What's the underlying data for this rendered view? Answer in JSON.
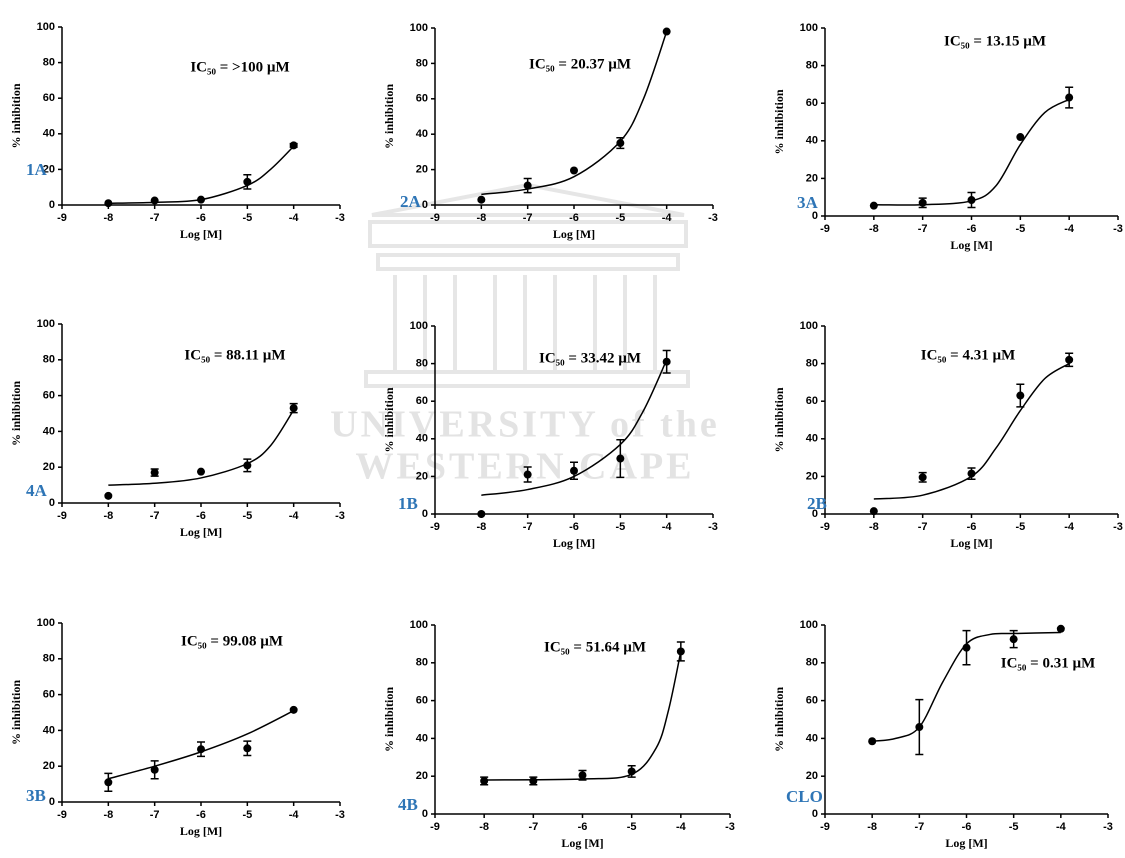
{
  "watermark": [
    "UNIVERSITY of the",
    "WESTERN CAPE"
  ],
  "chart_data": [
    {
      "type": "scatter",
      "panel_label": "1A",
      "annotation": "IC₅₀ = >100 µM",
      "xlabel": "Log [M]",
      "ylabel": "% inhibition",
      "xlim": [
        -9,
        -3
      ],
      "xticks": [
        -9,
        -8,
        -7,
        -6,
        -5,
        -4,
        -3
      ],
      "ylim": [
        0,
        100
      ],
      "yticks": [
        0,
        20,
        40,
        60,
        80,
        100
      ],
      "x": [
        -8,
        -7,
        -6,
        -5,
        -4
      ],
      "values": [
        1,
        2.5,
        3,
        13,
        33.5
      ],
      "errors": [
        null,
        null,
        null,
        4,
        1
      ],
      "curve": {
        "x": [
          -8,
          -7,
          -6,
          -5,
          -4.5,
          -4
        ],
        "values": [
          1,
          1.5,
          3,
          11,
          20,
          33
        ]
      }
    },
    {
      "type": "scatter",
      "panel_label": "2A",
      "annotation": "IC₅₀ = 20.37 µM",
      "xlabel": "Log [M]",
      "ylabel": "% inhibition",
      "xlim": [
        -9,
        -3
      ],
      "xticks": [
        -9,
        -8,
        -7,
        -6,
        -5,
        -4,
        -3
      ],
      "ylim": [
        0,
        100
      ],
      "yticks": [
        0,
        20,
        40,
        60,
        80,
        100
      ],
      "x": [
        -8,
        -7,
        -6,
        -5,
        -4
      ],
      "values": [
        3,
        11,
        19.5,
        35,
        98
      ],
      "errors": [
        null,
        4,
        null,
        3,
        null
      ],
      "curve": {
        "x": [
          -8,
          -7,
          -6,
          -5,
          -4.5,
          -4
        ],
        "values": [
          6,
          9,
          16,
          36,
          60,
          98
        ]
      }
    },
    {
      "type": "scatter",
      "panel_label": "3A",
      "annotation": "IC₅₀ = 13.15 µM",
      "xlabel": "Log [M]",
      "ylabel": "% inhibition",
      "xlim": [
        -9,
        -3
      ],
      "xticks": [
        -9,
        -8,
        -7,
        -6,
        -5,
        -4,
        -3
      ],
      "ylim": [
        0,
        100
      ],
      "yticks": [
        0,
        20,
        40,
        60,
        80,
        100
      ],
      "x": [
        -8,
        -7,
        -6,
        -5,
        -4
      ],
      "values": [
        5.5,
        7,
        8.5,
        42,
        63
      ],
      "errors": [
        null,
        2.5,
        4,
        null,
        5.5
      ],
      "curve": {
        "x": [
          -8,
          -7,
          -6,
          -5.5,
          -5,
          -4.5,
          -4
        ],
        "values": [
          6,
          6,
          8,
          16,
          38,
          55,
          62
        ]
      }
    },
    {
      "type": "scatter",
      "panel_label": "4A",
      "annotation": "IC₅₀ = 88.11 µM",
      "xlabel": "Log [M]",
      "ylabel": "% inhibition",
      "xlim": [
        -9,
        -3
      ],
      "xticks": [
        -9,
        -8,
        -7,
        -6,
        -5,
        -4,
        -3
      ],
      "ylim": [
        0,
        100
      ],
      "yticks": [
        0,
        20,
        40,
        60,
        80,
        100
      ],
      "x": [
        -8,
        -7,
        -6,
        -5,
        -4
      ],
      "values": [
        4,
        17,
        17.5,
        21,
        53
      ],
      "errors": [
        null,
        2,
        null,
        3.5,
        2.5
      ],
      "curve": {
        "x": [
          -8,
          -7,
          -6,
          -5,
          -4.5,
          -4
        ],
        "values": [
          10,
          11,
          14,
          22,
          32,
          52
        ]
      }
    },
    {
      "type": "scatter",
      "panel_label": "1B",
      "annotation": "IC₅₀ = 33.42 µM",
      "xlabel": "Log [M]",
      "ylabel": "% inhibition",
      "xlim": [
        -9,
        -3
      ],
      "xticks": [
        -9,
        -8,
        -7,
        -6,
        -5,
        -4,
        -3
      ],
      "ylim": [
        0,
        100
      ],
      "yticks": [
        0,
        20,
        40,
        60,
        80,
        100
      ],
      "x": [
        -8,
        -7,
        -6,
        -5,
        -4
      ],
      "values": [
        0,
        21,
        23,
        29.5,
        81
      ],
      "errors": [
        null,
        4,
        4.5,
        10,
        6
      ],
      "curve": {
        "x": [
          -8,
          -7,
          -6,
          -5,
          -4.5,
          -4
        ],
        "values": [
          10,
          13,
          20,
          37,
          55,
          82
        ]
      }
    },
    {
      "type": "scatter",
      "panel_label": "2B",
      "annotation": "IC₅₀ = 4.31 µM",
      "xlabel": "Log [M]",
      "ylabel": "% inhibition",
      "xlim": [
        -9,
        -3
      ],
      "xticks": [
        -9,
        -8,
        -7,
        -6,
        -5,
        -4,
        -3
      ],
      "ylim": [
        0,
        100
      ],
      "yticks": [
        0,
        20,
        40,
        60,
        80,
        100
      ],
      "x": [
        -8,
        -7,
        -6,
        -5,
        -4
      ],
      "values": [
        1.5,
        19.5,
        21.5,
        63,
        82
      ],
      "errors": [
        null,
        2.5,
        3,
        6,
        3.5
      ],
      "curve": {
        "x": [
          -8,
          -7,
          -6,
          -5.5,
          -5,
          -4.5,
          -4
        ],
        "values": [
          8,
          10,
          20,
          35,
          55,
          72,
          80
        ]
      }
    },
    {
      "type": "scatter",
      "panel_label": "3B",
      "annotation": "IC₅₀ = 99.08 µM",
      "xlabel": "Log [M]",
      "ylabel": "% inhibition",
      "xlim": [
        -9,
        -3
      ],
      "xticks": [
        -9,
        -8,
        -7,
        -6,
        -5,
        -4,
        -3
      ],
      "ylim": [
        0,
        100
      ],
      "yticks": [
        0,
        20,
        40,
        60,
        80,
        100
      ],
      "x": [
        -8,
        -7,
        -6,
        -5,
        -4
      ],
      "values": [
        11,
        18,
        29.5,
        30,
        51.5
      ],
      "errors": [
        5,
        5,
        4,
        4,
        null
      ],
      "curve": {
        "x": [
          -8,
          -7,
          -6,
          -5,
          -4
        ],
        "values": [
          13,
          20,
          28,
          38,
          51
        ]
      }
    },
    {
      "type": "scatter",
      "panel_label": "4B",
      "annotation": "IC₅₀ = 51.64 µM",
      "xlabel": "Log [M]",
      "ylabel": "% inhibition",
      "xlim": [
        -9,
        -3
      ],
      "xticks": [
        -9,
        -8,
        -7,
        -6,
        -5,
        -4,
        -3
      ],
      "ylim": [
        0,
        100
      ],
      "yticks": [
        0,
        20,
        40,
        60,
        80,
        100
      ],
      "x": [
        -8,
        -7,
        -6,
        -5,
        -4
      ],
      "values": [
        17.5,
        17.5,
        20.5,
        22.5,
        86
      ],
      "errors": [
        2,
        2,
        2.5,
        3,
        5
      ],
      "curve": {
        "x": [
          -8,
          -6,
          -5,
          -4.5,
          -4.25,
          -4
        ],
        "values": [
          18,
          18.5,
          21,
          35,
          55,
          86
        ]
      }
    },
    {
      "type": "scatter",
      "panel_label": "CLO",
      "annotation": "IC₅₀ = 0.31 µM",
      "xlabel": "Log [M]",
      "ylabel": "% inhibition",
      "xlim": [
        -9,
        -3
      ],
      "xticks": [
        -9,
        -8,
        -7,
        -6,
        -5,
        -4,
        -3
      ],
      "ylim": [
        0,
        100
      ],
      "yticks": [
        0,
        20,
        40,
        60,
        80,
        100
      ],
      "x": [
        -8,
        -7,
        -6,
        -5,
        -4
      ],
      "values": [
        38.5,
        46,
        88,
        92.5,
        98
      ],
      "errors": [
        null,
        14.5,
        9,
        4.5,
        null
      ],
      "curve": {
        "x": [
          -8,
          -7.5,
          -7,
          -6.5,
          -6,
          -5.5,
          -5,
          -4
        ],
        "values": [
          38.5,
          40,
          46,
          70,
          90,
          95,
          95.5,
          96
        ]
      }
    }
  ]
}
